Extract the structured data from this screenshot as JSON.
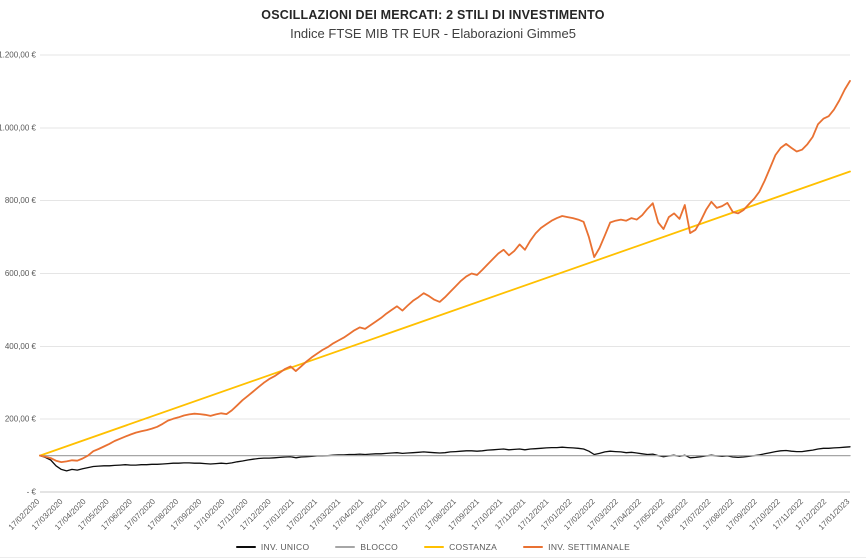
{
  "header": {
    "title": "OSCILLAZIONI DEI MERCATI: 2 STILI DI INVESTIMENTO",
    "subtitle": "Indice FTSE MIB TR EUR - Elaborazioni Gimme5"
  },
  "colors": {
    "background": "#ffffff",
    "gridline": "#e5e5e5",
    "axis_line": "#c8c8c8",
    "tick_label": "#595959",
    "title": "#262626",
    "subtitle": "#404040",
    "inv_unico": "#0d0d0d",
    "blocco": "#a6a6a6",
    "costanza": "#ffc000",
    "inv_settimanale": "#e97132"
  },
  "chart_data": {
    "type": "line",
    "title": "OSCILLAZIONI DEI MERCATI: 2 STILI DI INVESTIMENTO",
    "subtitle": "Indice FTSE MIB TR EUR - Elaborazioni Gimme5",
    "xlabel": "",
    "ylabel": "",
    "ylim": [
      0,
      1200
    ],
    "grid": true,
    "legend_position": "bottom",
    "n_points": 153,
    "x_unit": "weekly from 17/02/2020 to 17/01/2023",
    "x_tick_labels": [
      "17/02/2020",
      "17/03/2020",
      "17/04/2020",
      "17/05/2020",
      "17/06/2020",
      "17/07/2020",
      "17/08/2020",
      "17/09/2020",
      "17/10/2020",
      "17/11/2020",
      "17/12/2020",
      "17/01/2021",
      "17/02/2021",
      "17/03/2021",
      "17/04/2021",
      "17/05/2021",
      "17/06/2021",
      "17/07/2021",
      "17/08/2021",
      "17/09/2021",
      "17/10/2021",
      "17/11/2021",
      "17/12/2021",
      "17/01/2022",
      "17/02/2022",
      "17/03/2022",
      "17/04/2022",
      "17/05/2022",
      "17/06/2022",
      "17/07/2022",
      "17/08/2022",
      "17/09/2022",
      "17/10/2022",
      "17/11/2022",
      "17/12/2022",
      "17/01/2023"
    ],
    "y_ticks": [
      {
        "value": 0,
        "label": "-    €"
      },
      {
        "value": 200,
        "label": "200,00 €"
      },
      {
        "value": 400,
        "label": "400,00 €"
      },
      {
        "value": 600,
        "label": "600,00 €"
      },
      {
        "value": 800,
        "label": "800,00 €"
      },
      {
        "value": 1000,
        "label": "1.000,00 €"
      },
      {
        "value": 1200,
        "label": "1.200,00 €"
      }
    ],
    "series": [
      {
        "name": "INV. UNICO",
        "slug": "inv-unico",
        "color": "#0d0d0d",
        "width": 1.3,
        "values": [
          100,
          95,
          88,
          72,
          62,
          58,
          62,
          60,
          64,
          67,
          70,
          71,
          72,
          72,
          73,
          74,
          75,
          74,
          74,
          75,
          75,
          76,
          76,
          77,
          78,
          79,
          79,
          80,
          80,
          79,
          79,
          78,
          77,
          78,
          79,
          78,
          80,
          83,
          85,
          88,
          90,
          92,
          93,
          93,
          94,
          95,
          96,
          97,
          94,
          96,
          97,
          98,
          99,
          99,
          100,
          101,
          102,
          102,
          103,
          103,
          104,
          103,
          104,
          105,
          105,
          106,
          107,
          108,
          106,
          107,
          108,
          109,
          110,
          109,
          108,
          107,
          108,
          110,
          111,
          112,
          113,
          113,
          112,
          113,
          115,
          116,
          117,
          118,
          116,
          117,
          118,
          116,
          118,
          119,
          120,
          121,
          122,
          122,
          123,
          122,
          121,
          120,
          118,
          112,
          103,
          106,
          110,
          112,
          111,
          110,
          108,
          109,
          107,
          105,
          103,
          104,
          100,
          97,
          99,
          101,
          98,
          101,
          94,
          95,
          97,
          99,
          101,
          99,
          98,
          99,
          96,
          95,
          96,
          98,
          100,
          102,
          105,
          108,
          111,
          113,
          114,
          112,
          111,
          111,
          113,
          115,
          118,
          120,
          120,
          121,
          122,
          123,
          124
        ]
      },
      {
        "name": "BLOCCO",
        "slug": "blocco",
        "color": "#a6a6a6",
        "width": 1.3,
        "flat_value": 100
      },
      {
        "name": "COSTANZA",
        "slug": "costanza",
        "color": "#ffc000",
        "width": 1.8,
        "linear": {
          "start": 100,
          "end": 880
        }
      },
      {
        "name": "INV. SETTIMANALE",
        "slug": "inv-settimanale",
        "color": "#e97132",
        "width": 1.8,
        "values": [
          100,
          97,
          93,
          86,
          82,
          84,
          87,
          86,
          92,
          100,
          112,
          118,
          125,
          132,
          140,
          146,
          152,
          158,
          163,
          167,
          170,
          174,
          179,
          187,
          196,
          201,
          205,
          210,
          213,
          215,
          214,
          212,
          209,
          213,
          216,
          214,
          224,
          238,
          252,
          264,
          276,
          288,
          300,
          310,
          318,
          328,
          338,
          345,
          332,
          345,
          358,
          370,
          380,
          390,
          398,
          408,
          416,
          424,
          434,
          444,
          452,
          448,
          458,
          468,
          478,
          490,
          500,
          510,
          498,
          512,
          525,
          535,
          546,
          538,
          528,
          522,
          535,
          550,
          565,
          580,
          592,
          600,
          596,
          610,
          625,
          640,
          655,
          665,
          650,
          662,
          680,
          665,
          690,
          710,
          725,
          735,
          745,
          752,
          758,
          755,
          752,
          748,
          742,
          700,
          645,
          670,
          705,
          740,
          745,
          748,
          745,
          752,
          748,
          760,
          778,
          793,
          740,
          722,
          755,
          765,
          750,
          788,
          711,
          720,
          745,
          775,
          797,
          780,
          785,
          794,
          769,
          765,
          774,
          790,
          805,
          825,
          855,
          890,
          925,
          945,
          956,
          945,
          935,
          940,
          955,
          975,
          1010,
          1025,
          1032,
          1050,
          1075,
          1105,
          1129
        ]
      }
    ]
  }
}
